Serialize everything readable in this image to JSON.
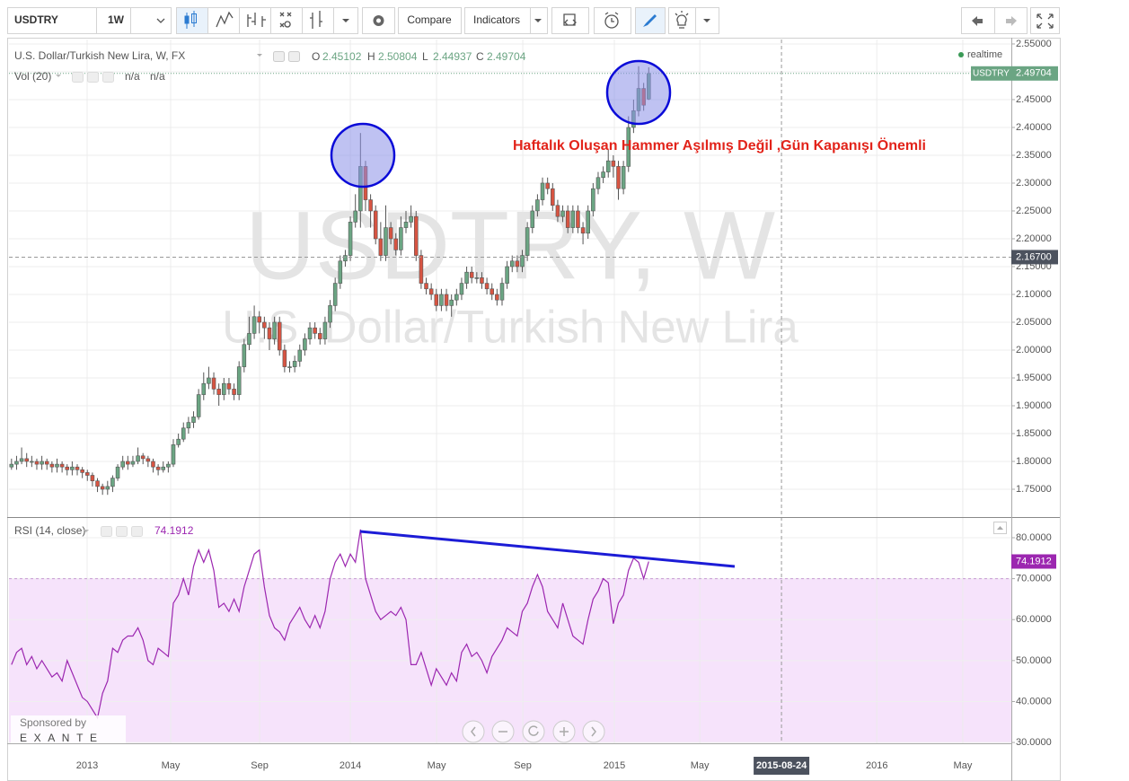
{
  "toolbar": {
    "symbol": "USDTRY",
    "interval": "1W",
    "compare": "Compare",
    "indicators": "Indicators"
  },
  "chart_data": [
    {
      "type": "candlestick",
      "title": "U.S. Dollar/Turkish New Lira, W, FX",
      "ohlc_labels": [
        "O",
        "H",
        "L",
        "C"
      ],
      "volume_label": "Vol (20)",
      "volume_values": [
        "n/a",
        "n/a"
      ],
      "status": "realtime",
      "symbol": "USDTRY",
      "watermark": "USDTRY, W",
      "watermark_subtitle": "U.S. Dollar/Turkish New Lira",
      "annotation": "Haftalık Oluşan Hammer Aşılmış Değil ,Gün Kapanışı Önemli",
      "open": [
        1.79,
        1.795,
        1.8,
        1.805,
        1.8,
        1.8,
        1.795,
        1.8,
        1.795,
        1.79,
        1.795,
        1.79,
        1.785,
        1.79,
        1.785,
        1.78,
        1.775,
        1.765,
        1.755,
        1.75,
        1.755,
        1.77,
        1.79,
        1.8,
        1.795,
        1.8,
        1.81,
        1.805,
        1.8,
        1.79,
        1.785,
        1.79,
        1.795,
        1.83,
        1.84,
        1.86,
        1.87,
        1.88,
        1.92,
        1.94,
        1.95,
        1.93,
        1.92,
        1.94,
        1.93,
        1.92,
        1.97,
        2.01,
        2.03,
        2.06,
        2.05,
        2.04,
        2.02,
        2.05,
        2.0,
        1.97,
        1.97,
        1.98,
        2.0,
        2.02,
        2.04,
        2.03,
        2.02,
        2.05,
        2.08,
        2.12,
        2.16,
        2.17,
        2.23,
        2.25,
        2.33,
        2.27,
        2.25,
        2.2,
        2.17,
        2.22,
        2.2,
        2.18,
        2.22,
        2.23,
        2.24,
        2.17,
        2.12,
        2.11,
        2.1,
        2.08,
        2.1,
        2.08,
        2.09,
        2.1,
        2.12,
        2.14,
        2.13,
        2.13,
        2.12,
        2.11,
        2.1,
        2.09,
        2.12,
        2.15,
        2.16,
        2.15,
        2.17,
        2.22,
        2.25,
        2.27,
        2.3,
        2.29,
        2.26,
        2.24,
        2.25,
        2.22,
        2.25,
        2.22,
        2.21,
        2.25,
        2.29,
        2.31,
        2.32,
        2.34,
        2.33,
        2.29,
        2.33,
        2.4,
        2.43,
        2.47,
        2.45102
      ],
      "high": [
        1.805,
        1.81,
        1.825,
        1.815,
        1.81,
        1.805,
        1.81,
        1.805,
        1.8,
        1.805,
        1.8,
        1.795,
        1.8,
        1.795,
        1.79,
        1.785,
        1.78,
        1.77,
        1.76,
        1.765,
        1.775,
        1.795,
        1.81,
        1.81,
        1.81,
        1.825,
        1.815,
        1.81,
        1.805,
        1.795,
        1.8,
        1.8,
        1.84,
        1.85,
        1.87,
        1.88,
        1.89,
        1.93,
        1.96,
        1.97,
        1.96,
        1.94,
        1.95,
        1.95,
        1.94,
        1.98,
        2.02,
        2.06,
        2.08,
        2.07,
        2.06,
        2.05,
        2.06,
        2.06,
        2.01,
        1.98,
        1.99,
        2.01,
        2.03,
        2.05,
        2.05,
        2.04,
        2.06,
        2.09,
        2.13,
        2.17,
        2.18,
        2.24,
        2.28,
        2.39,
        2.34,
        2.28,
        2.26,
        2.23,
        2.26,
        2.23,
        2.21,
        2.24,
        2.25,
        2.26,
        2.25,
        2.18,
        2.13,
        2.12,
        2.11,
        2.11,
        2.11,
        2.1,
        2.11,
        2.13,
        2.15,
        2.15,
        2.14,
        2.14,
        2.13,
        2.12,
        2.11,
        2.13,
        2.16,
        2.17,
        2.17,
        2.18,
        2.23,
        2.26,
        2.28,
        2.31,
        2.31,
        2.3,
        2.27,
        2.26,
        2.26,
        2.26,
        2.26,
        2.23,
        2.26,
        2.3,
        2.32,
        2.33,
        2.36,
        2.35,
        2.34,
        2.34,
        2.42,
        2.45,
        2.51,
        2.48,
        2.50804
      ],
      "low": [
        1.785,
        1.785,
        1.795,
        1.79,
        1.79,
        1.785,
        1.785,
        1.785,
        1.78,
        1.78,
        1.78,
        1.775,
        1.775,
        1.775,
        1.77,
        1.765,
        1.755,
        1.745,
        1.74,
        1.74,
        1.745,
        1.765,
        1.785,
        1.785,
        1.79,
        1.795,
        1.795,
        1.79,
        1.78,
        1.775,
        1.78,
        1.78,
        1.79,
        1.825,
        1.835,
        1.85,
        1.86,
        1.875,
        1.91,
        1.93,
        1.92,
        1.9,
        1.91,
        1.92,
        1.91,
        1.91,
        1.96,
        2.0,
        2.02,
        2.03,
        2.02,
        2.0,
        2.01,
        1.99,
        1.96,
        1.96,
        1.96,
        1.97,
        1.99,
        2.01,
        2.02,
        2.01,
        2.01,
        2.04,
        2.07,
        2.11,
        2.15,
        2.16,
        2.22,
        2.22,
        2.25,
        2.22,
        2.19,
        2.16,
        2.16,
        2.19,
        2.17,
        2.17,
        2.21,
        2.22,
        2.16,
        2.11,
        2.1,
        2.09,
        2.07,
        2.07,
        2.07,
        2.06,
        2.08,
        2.09,
        2.11,
        2.12,
        2.12,
        2.11,
        2.1,
        2.09,
        2.08,
        2.08,
        2.11,
        2.14,
        2.14,
        2.14,
        2.16,
        2.21,
        2.24,
        2.26,
        2.28,
        2.25,
        2.23,
        2.23,
        2.21,
        2.21,
        2.21,
        2.19,
        2.2,
        2.24,
        2.28,
        2.3,
        2.31,
        2.31,
        2.27,
        2.28,
        2.32,
        2.39,
        2.42,
        2.43,
        2.44937
      ],
      "close": [
        1.795,
        1.8,
        1.805,
        1.8,
        1.8,
        1.795,
        1.8,
        1.795,
        1.79,
        1.795,
        1.79,
        1.785,
        1.79,
        1.785,
        1.78,
        1.775,
        1.765,
        1.755,
        1.75,
        1.755,
        1.77,
        1.79,
        1.8,
        1.795,
        1.8,
        1.81,
        1.805,
        1.8,
        1.79,
        1.785,
        1.79,
        1.795,
        1.83,
        1.84,
        1.86,
        1.87,
        1.88,
        1.92,
        1.94,
        1.95,
        1.93,
        1.92,
        1.94,
        1.93,
        1.92,
        1.97,
        2.01,
        2.03,
        2.06,
        2.05,
        2.04,
        2.02,
        2.05,
        2.0,
        1.97,
        1.97,
        1.98,
        2.0,
        2.02,
        2.04,
        2.03,
        2.02,
        2.05,
        2.08,
        2.12,
        2.16,
        2.17,
        2.23,
        2.25,
        2.33,
        2.27,
        2.25,
        2.2,
        2.17,
        2.22,
        2.2,
        2.18,
        2.22,
        2.23,
        2.24,
        2.17,
        2.12,
        2.11,
        2.1,
        2.08,
        2.1,
        2.08,
        2.09,
        2.1,
        2.12,
        2.14,
        2.13,
        2.13,
        2.12,
        2.11,
        2.1,
        2.09,
        2.12,
        2.15,
        2.16,
        2.15,
        2.17,
        2.22,
        2.25,
        2.27,
        2.3,
        2.29,
        2.26,
        2.24,
        2.25,
        2.22,
        2.25,
        2.22,
        2.21,
        2.25,
        2.29,
        2.31,
        2.32,
        2.34,
        2.33,
        2.29,
        2.33,
        2.4,
        2.43,
        2.47,
        2.44,
        2.49704
      ],
      "up_color": "#6ba583",
      "down_color": "#d75442",
      "wick_color": "#555555",
      "last_color": "#6ba583",
      "grid": true,
      "ylim": [
        1.7,
        2.558
      ],
      "yticks": [
        {
          "value": 2.55,
          "label": "2.55000"
        },
        {
          "value": 2.5,
          "label": "2.50000"
        },
        {
          "value": 2.45,
          "label": "2.45000"
        },
        {
          "value": 2.4,
          "label": "2.40000"
        },
        {
          "value": 2.35,
          "label": "2.35000"
        },
        {
          "value": 2.3,
          "label": "2.30000"
        },
        {
          "value": 2.25,
          "label": "2.25000"
        },
        {
          "value": 2.2,
          "label": "2.20000"
        },
        {
          "value": 2.15,
          "label": "2.15000"
        },
        {
          "value": 2.1,
          "label": "2.10000"
        },
        {
          "value": 2.05,
          "label": "2.05000"
        },
        {
          "value": 2.0,
          "label": "2.00000"
        },
        {
          "value": 1.95,
          "label": "1.95000"
        },
        {
          "value": 1.9,
          "label": "1.90000"
        },
        {
          "value": 1.85,
          "label": "1.85000"
        },
        {
          "value": 1.8,
          "label": "1.80000"
        },
        {
          "value": 1.75,
          "label": "1.75000"
        }
      ],
      "xlim": [
        0,
        198.2
      ],
      "xticks": [
        {
          "value": 15.45,
          "label": "2013"
        },
        {
          "value": 31.97,
          "label": "May"
        },
        {
          "value": 49.56,
          "label": "Sep"
        },
        {
          "value": 67.5,
          "label": "2014"
        },
        {
          "value": 84.55,
          "label": "May"
        },
        {
          "value": 101.6,
          "label": "Sep"
        },
        {
          "value": 119.7,
          "label": "2015"
        },
        {
          "value": 136.6,
          "label": "May"
        },
        {
          "value": 171.6,
          "label": "2016"
        },
        {
          "value": 188.6,
          "label": "May"
        }
      ],
      "crosshair_x": {
        "value": 152.75,
        "label": "2015-08-24"
      },
      "crosshair_y": {
        "value": 2.167,
        "label": "2.16700"
      }
    },
    {
      "type": "line",
      "title": "RSI (14, close)",
      "values": [
        49,
        52,
        53,
        49,
        51,
        48,
        50,
        48,
        46,
        47,
        45,
        50,
        47,
        44,
        41,
        40,
        38,
        36,
        42,
        45,
        53,
        52,
        55,
        56,
        56,
        58,
        55,
        50,
        49,
        53,
        52,
        51,
        64,
        66,
        70,
        66,
        73,
        77,
        74,
        77,
        72,
        63,
        64,
        62,
        65,
        62,
        68,
        72,
        76,
        77,
        68,
        61,
        58,
        57,
        55,
        59,
        61,
        63,
        60,
        58,
        61,
        58,
        62,
        70,
        74,
        76,
        73,
        76,
        74,
        82,
        70,
        66,
        62,
        60,
        61,
        62,
        61,
        63,
        60,
        49,
        49,
        52,
        48,
        44,
        48,
        46,
        44,
        47,
        45,
        52,
        54,
        51,
        52,
        50,
        47,
        51,
        53,
        55,
        58,
        57,
        56,
        62,
        64,
        68,
        71,
        68,
        62,
        60,
        58,
        64,
        60,
        56,
        55,
        54,
        60,
        65,
        67,
        70,
        69,
        59,
        64,
        66,
        72,
        75,
        74,
        70,
        74.1912
      ],
      "color": "#9c27b0",
      "band": [
        30,
        70
      ],
      "band_color": "#f6e3fb",
      "ylim": [
        29.8,
        84.6
      ],
      "yticks": [
        {
          "value": 80,
          "label": "80.0000"
        },
        {
          "value": 70,
          "label": "70.0000"
        },
        {
          "value": 60,
          "label": "60.0000"
        },
        {
          "value": 50,
          "label": "50.0000"
        },
        {
          "value": 40,
          "label": "40.0000"
        },
        {
          "value": 30,
          "label": "30.0000"
        }
      ],
      "sponsor": "Sponsored by",
      "sponsor_name": "EXANTE"
    }
  ]
}
